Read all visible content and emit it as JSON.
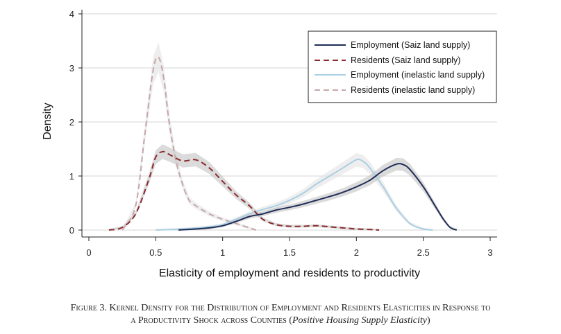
{
  "chart_data": {
    "type": "line",
    "xlabel": "Elasticity of employment and residents to productivity",
    "ylabel": "Density",
    "xlim": [
      0,
      3
    ],
    "ylim": [
      0,
      4
    ],
    "xticks": [
      "0",
      "0.5",
      "1",
      "1.5",
      "2",
      "2.5",
      "3"
    ],
    "yticks": [
      "0",
      "1",
      "2",
      "3",
      "4"
    ],
    "grid": true,
    "legend_position": "top-right",
    "series": [
      {
        "name": "Employment (Saiz land supply)",
        "color": "#1f2d57",
        "style": "solid",
        "band": true,
        "points": [
          [
            0.67,
            0.0
          ],
          [
            0.8,
            0.02
          ],
          [
            0.9,
            0.04
          ],
          [
            1.0,
            0.08
          ],
          [
            1.1,
            0.16
          ],
          [
            1.2,
            0.25
          ],
          [
            1.3,
            0.3
          ],
          [
            1.4,
            0.37
          ],
          [
            1.5,
            0.42
          ],
          [
            1.6,
            0.48
          ],
          [
            1.7,
            0.55
          ],
          [
            1.8,
            0.62
          ],
          [
            1.9,
            0.7
          ],
          [
            2.0,
            0.8
          ],
          [
            2.1,
            0.92
          ],
          [
            2.2,
            1.1
          ],
          [
            2.3,
            1.22
          ],
          [
            2.35,
            1.21
          ],
          [
            2.4,
            1.12
          ],
          [
            2.5,
            0.8
          ],
          [
            2.6,
            0.4
          ],
          [
            2.65,
            0.2
          ],
          [
            2.7,
            0.05
          ],
          [
            2.75,
            0.0
          ]
        ]
      },
      {
        "name": "Residents (Saiz land supply)",
        "color": "#8b2a2e",
        "style": "dashed",
        "band": true,
        "points": [
          [
            0.15,
            0.0
          ],
          [
            0.25,
            0.05
          ],
          [
            0.35,
            0.3
          ],
          [
            0.45,
            0.95
          ],
          [
            0.5,
            1.35
          ],
          [
            0.55,
            1.45
          ],
          [
            0.6,
            1.4
          ],
          [
            0.7,
            1.28
          ],
          [
            0.8,
            1.3
          ],
          [
            0.9,
            1.15
          ],
          [
            1.0,
            0.9
          ],
          [
            1.1,
            0.65
          ],
          [
            1.2,
            0.45
          ],
          [
            1.3,
            0.2
          ],
          [
            1.4,
            0.1
          ],
          [
            1.5,
            0.07
          ],
          [
            1.6,
            0.07
          ],
          [
            1.7,
            0.08
          ],
          [
            1.8,
            0.06
          ],
          [
            1.9,
            0.04
          ],
          [
            2.0,
            0.02
          ],
          [
            2.1,
            0.01
          ],
          [
            2.17,
            0.0
          ]
        ]
      },
      {
        "name": "Employment (inelastic land supply)",
        "color": "#a9cfe3",
        "style": "solid",
        "band": true,
        "points": [
          [
            0.5,
            0.0
          ],
          [
            0.7,
            0.02
          ],
          [
            0.9,
            0.06
          ],
          [
            1.0,
            0.1
          ],
          [
            1.1,
            0.2
          ],
          [
            1.2,
            0.3
          ],
          [
            1.3,
            0.38
          ],
          [
            1.4,
            0.45
          ],
          [
            1.5,
            0.55
          ],
          [
            1.6,
            0.68
          ],
          [
            1.7,
            0.85
          ],
          [
            1.8,
            1.0
          ],
          [
            1.9,
            1.15
          ],
          [
            2.0,
            1.3
          ],
          [
            2.05,
            1.27
          ],
          [
            2.1,
            1.15
          ],
          [
            2.2,
            0.8
          ],
          [
            2.3,
            0.4
          ],
          [
            2.4,
            0.12
          ],
          [
            2.5,
            0.02
          ],
          [
            2.57,
            0.0
          ]
        ]
      },
      {
        "name": "Residents (inelastic land supply)",
        "color": "#c7a7a9",
        "style": "dashed",
        "band": true,
        "points": [
          [
            0.25,
            0.0
          ],
          [
            0.35,
            0.45
          ],
          [
            0.42,
            1.8
          ],
          [
            0.48,
            2.95
          ],
          [
            0.52,
            3.2
          ],
          [
            0.56,
            2.8
          ],
          [
            0.6,
            2.0
          ],
          [
            0.65,
            1.3
          ],
          [
            0.7,
            0.85
          ],
          [
            0.75,
            0.55
          ],
          [
            0.8,
            0.45
          ],
          [
            0.9,
            0.3
          ],
          [
            1.0,
            0.2
          ],
          [
            1.1,
            0.12
          ],
          [
            1.2,
            0.04
          ],
          [
            1.25,
            0.0
          ]
        ]
      }
    ]
  },
  "caption": {
    "lead": "Figure 3. Kernel Density for the Distribution of Employment and Residents Elasticities in Response to",
    "line2": "a Productivity Shock across Counties (",
    "italic": "Positive Housing Supply Elasticity",
    "close": ")"
  }
}
